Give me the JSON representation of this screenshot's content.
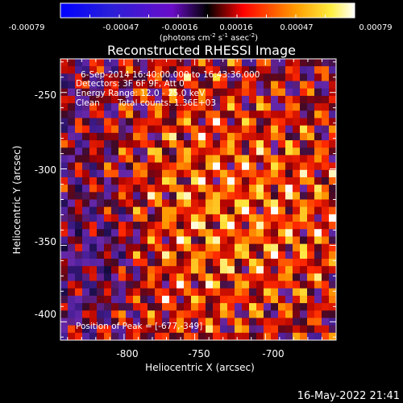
{
  "colorbar": {
    "tick_labels": [
      "-0.00079",
      "-0.00047",
      "-0.00016",
      "0.00016",
      "0.00047",
      "0.00079"
    ],
    "unit_main": "(photons cm",
    "unit_exp1": "-2",
    "unit_s": " s",
    "unit_exp2": "-1",
    "unit_asec": " asec",
    "unit_exp3": "-2",
    "unit_close": ")"
  },
  "info": {
    "time_range": "6-Sep-2014 16:40:00.000 to 16:43:36.000",
    "detectors": "Detectors: 3F 6F 9F, Att 0",
    "energy": "Energy Range: 12.0 - 25.0 keV",
    "algorithm": "Clean",
    "counts": "Total counts: 1.36E+03",
    "peak": "Position of Peak = [-677,-349]"
  },
  "footer": {
    "timestamp": "16-May-2022 21:41"
  },
  "chart_data": {
    "type": "heatmap",
    "title": "Reconstructed RHESSI Image",
    "xlabel": "Heliocentric X (arcsec)",
    "ylabel": "Heliocentric Y (arcsec)",
    "xlim": [
      -845,
      -650
    ],
    "ylim": [
      -412,
      -228
    ],
    "xticks": [
      -800,
      -750,
      -700
    ],
    "yticks": [
      -250,
      -300,
      -350,
      -400
    ],
    "colorbar_range": [
      -0.00079,
      0.00079
    ],
    "peak_position": [
      -677,
      -349
    ],
    "colors": [
      "#0000ff",
      "#6a0cc8",
      "#ff0000",
      "#ff9c00",
      "#ffffff"
    ]
  }
}
